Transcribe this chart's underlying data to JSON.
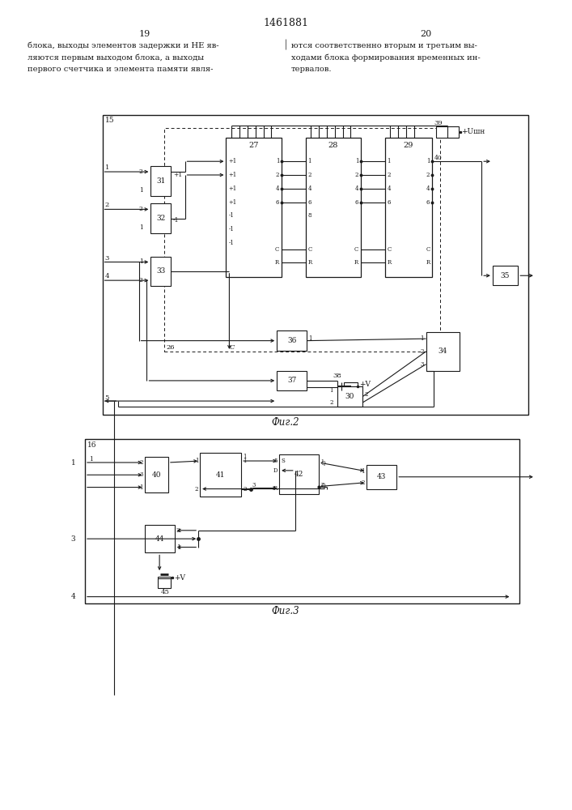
{
  "title": "1461881",
  "bg_color": "#ffffff",
  "lc": "#1a1a1a",
  "text_left_lines": [
    "блока, выходы элементов задержки и НЕ яв-",
    "ляются первым выходом блока, а выходы",
    "первого счетчика и элемента памяти явля-"
  ],
  "text_right_lines": [
    "ются соответственно вторым и третьим вы-",
    "ходами блока формирования временных ин-",
    "тервалов."
  ]
}
